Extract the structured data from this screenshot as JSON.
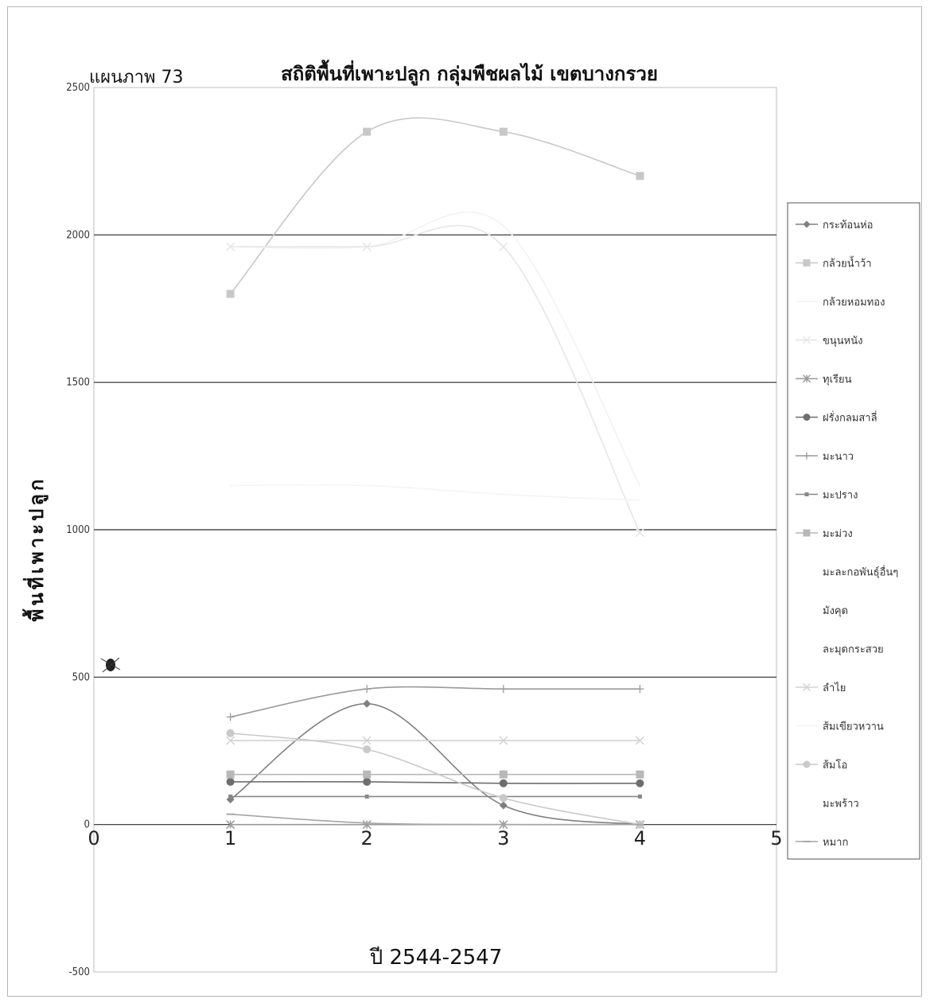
{
  "chart_data": {
    "type": "line",
    "figure_label": "แผนภาพ 73",
    "title": "สถิติพื้นที่เพาะปลูก กลุ่มพืชผลไม้ เขตบางกรวย",
    "xlabel": "ปี 2544-2547",
    "ylabel": "พื้นที่เพาะปลูก",
    "xlim": [
      0,
      5
    ],
    "ylim": [
      -500,
      2500
    ],
    "x_ticks": [
      "0",
      "1",
      "2",
      "3",
      "4",
      "5"
    ],
    "y_ticks": [
      "-500",
      "0",
      "500",
      "1000",
      "1500",
      "2000",
      "2500"
    ],
    "grid": "horizontal",
    "legend_position": "right",
    "x": [
      1,
      2,
      3,
      4
    ],
    "series": [
      {
        "name": "กระท้อนห่อ",
        "values": [
          85,
          410,
          65,
          0
        ],
        "color": "#7f7f7f",
        "marker": "diamond",
        "visible": true
      },
      {
        "name": "กล้วยน้ำว้า",
        "values": [
          1800,
          2350,
          2350,
          2200
        ],
        "color": "#c8c8c8",
        "marker": "square",
        "visible": true
      },
      {
        "name": "กล้วยหอมทอง",
        "values": [
          1960,
          1960,
          2030,
          1150
        ],
        "color": "#f2f2f2",
        "marker": "none",
        "visible": true
      },
      {
        "name": "ขนุนหนัง",
        "values": [
          1960,
          1960,
          1960,
          990
        ],
        "color": "#e6e6e6",
        "marker": "x",
        "visible": true
      },
      {
        "name": "ทุเรียน",
        "values": [
          0,
          0,
          0,
          0
        ],
        "color": "#9a9a9a",
        "marker": "asterisk",
        "visible": true
      },
      {
        "name": "ฝรั่งกลมสาลี่",
        "values": [
          145,
          145,
          140,
          140
        ],
        "color": "#6e6e6e",
        "marker": "circle",
        "visible": true
      },
      {
        "name": "มะนาว",
        "values": [
          365,
          460,
          460,
          460
        ],
        "color": "#9a9a9a",
        "marker": "plus",
        "visible": true
      },
      {
        "name": "มะปราง",
        "values": [
          95,
          95,
          95,
          95
        ],
        "color": "#888888",
        "marker": "dot",
        "visible": true
      },
      {
        "name": "มะม่วง",
        "values": [
          170,
          170,
          170,
          170
        ],
        "color": "#b8b8b8",
        "marker": "square",
        "visible": true
      },
      {
        "name": "มะละกอพันธุ์อื่นๆ",
        "values": [
          0,
          0,
          0,
          0
        ],
        "color": "#ffffff",
        "marker": "none",
        "visible": false
      },
      {
        "name": "มังคุด",
        "values": [
          0,
          0,
          0,
          0
        ],
        "color": "#ffffff",
        "marker": "none",
        "visible": false
      },
      {
        "name": "ละมุดกระสวย",
        "values": [
          0,
          0,
          0,
          0
        ],
        "color": "#ffffff",
        "marker": "none",
        "visible": false
      },
      {
        "name": "ลำไย",
        "values": [
          285,
          285,
          285,
          285
        ],
        "color": "#d2d2d2",
        "marker": "x",
        "visible": true
      },
      {
        "name": "ส้มเขียวหวาน",
        "values": [
          1150,
          1150,
          1120,
          1100
        ],
        "color": "#f4f4f4",
        "marker": "none",
        "visible": true
      },
      {
        "name": "ส้มโอ",
        "values": [
          310,
          255,
          90,
          0
        ],
        "color": "#c9c9c9",
        "marker": "circle",
        "visible": true
      },
      {
        "name": "มะพร้าว",
        "values": [
          0,
          0,
          0,
          0
        ],
        "color": "#ffffff",
        "marker": "none",
        "visible": false
      },
      {
        "name": "หมาก",
        "values": [
          35,
          5,
          0,
          0
        ],
        "color": "#a6a6a6",
        "marker": "dash",
        "visible": true
      }
    ]
  }
}
